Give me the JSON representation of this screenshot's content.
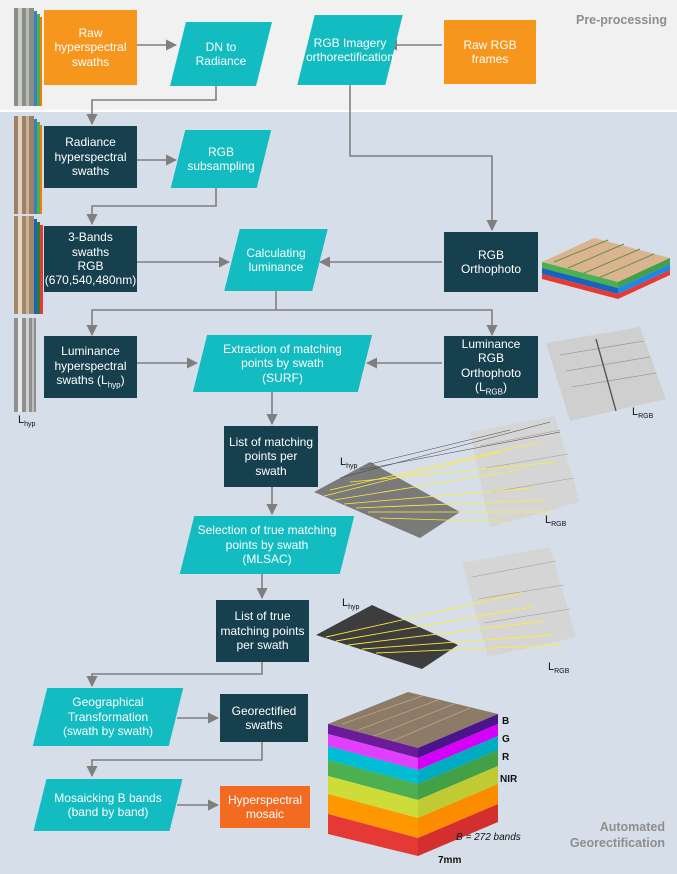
{
  "sections": {
    "pre": "Pre-processing",
    "auto_line1": "Automated",
    "auto_line2": "Georectification"
  },
  "nodes": {
    "raw_hs": "Raw hyperspectral swaths",
    "dn_rad": "DN to Radiance",
    "rgb_ortho_rect": "RGB Imagery orthorectification",
    "raw_rgb": "Raw RGB frames",
    "rad_hs": "Radiance hyperspectral swaths",
    "rgb_sub": "RGB subsampling",
    "three_bands_l1": "3-Bands swaths",
    "three_bands_l2": "RGB",
    "three_bands_l3": "(670,540,480nm)",
    "calc_lum": "Calculating luminance",
    "rgb_orthophoto": "RGB Orthophoto",
    "lum_hs_l1": "Luminance",
    "lum_hs_l2": "hyperspectral",
    "lum_hs_l3a": "swaths (L",
    "lum_hs_sub": "hyp",
    "lum_hs_l3b": ")",
    "extract_l1": "Extraction of matching",
    "extract_l2": "points by swath",
    "extract_l3": "(SURF)",
    "lum_rgb_l1": "Luminance RGB",
    "lum_rgb_l2": "Orthophoto",
    "lum_rgb_l3a": "(L",
    "lum_rgb_sub": "RGB",
    "lum_rgb_l3b": ")",
    "list_match": "List of matching points per swath",
    "select_true_l1": "Selection of true matching",
    "select_true_l2": "points by swath",
    "select_true_l3": "(MLSAC)",
    "list_true": "List of true matching points per swath",
    "geo_trans_l1": "Geographical",
    "geo_trans_l2": "Transformation",
    "geo_trans_l3": "(swath by swath)",
    "georect": "Georectified swaths",
    "mosaic_l1": "Mosaicking B bands",
    "mosaic_l2": "(band by band)",
    "hs_mosaic": "Hyperspectral mosaic"
  },
  "labels": {
    "L": "L",
    "hyp": "hyp",
    "RGB": "RGB"
  },
  "cube": {
    "B": "B",
    "G": "G",
    "R": "R",
    "NIR": "NIR",
    "bands": "B = 272 bands",
    "scale": "7mm"
  },
  "colors": {
    "orange": "#f7961d",
    "mosaic_orange": "#f26b21",
    "teal": "#12bcc0",
    "dark": "#17404f",
    "arrow": "#7f7f7f",
    "pre_bg": "#f1f1f1",
    "auto_bg": "#d6dfe9"
  }
}
